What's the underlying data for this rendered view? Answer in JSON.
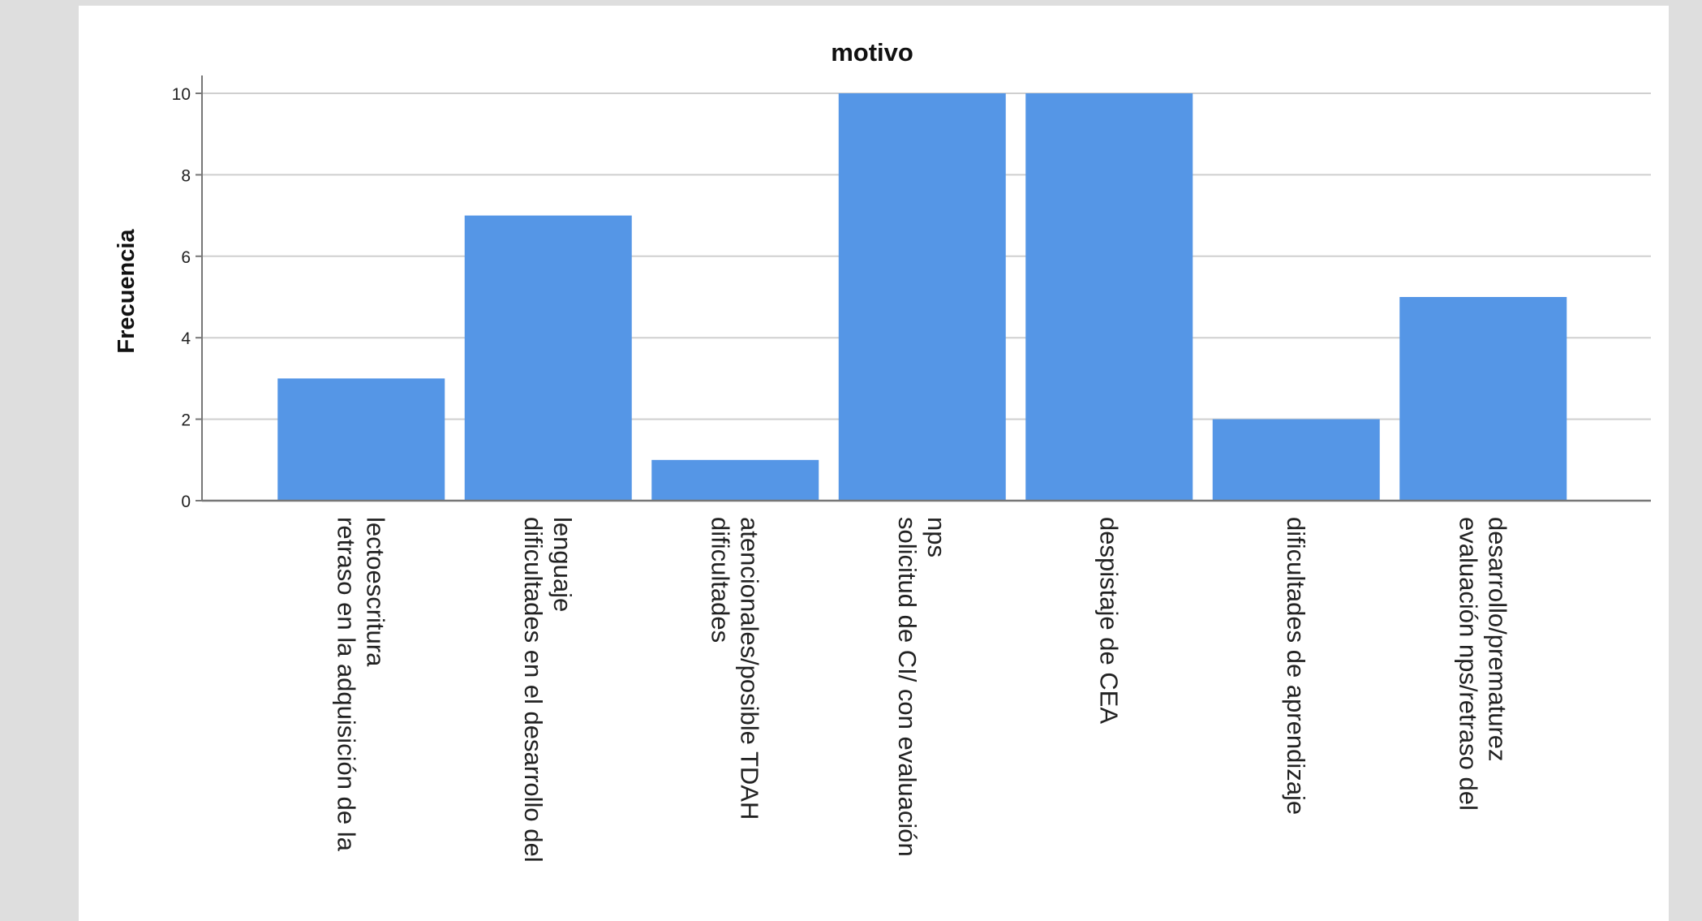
{
  "chart_data": {
    "type": "bar",
    "title": "motivo",
    "xlabel": "",
    "ylabel": "Frecuencia",
    "ylim": [
      0,
      10
    ],
    "yticks": [
      0,
      2,
      4,
      6,
      8,
      10
    ],
    "grid": true,
    "bar_color": "#5596e6",
    "categories": [
      [
        "retraso en la adquisición de la",
        "lectoescritura"
      ],
      [
        "dificultades en el desarrollo del",
        "lenguaje"
      ],
      [
        "dificultades",
        "atencionales/posible TDAH"
      ],
      [
        "solicitud de CI/ con evaluación",
        "nps"
      ],
      [
        "despistaje de CEA"
      ],
      [
        "dificultades de aprendizaje"
      ],
      [
        "evaluación nps/retraso del",
        "desarrollo/prematurez"
      ]
    ],
    "values": [
      3,
      7,
      1,
      10,
      10,
      2,
      5
    ]
  }
}
